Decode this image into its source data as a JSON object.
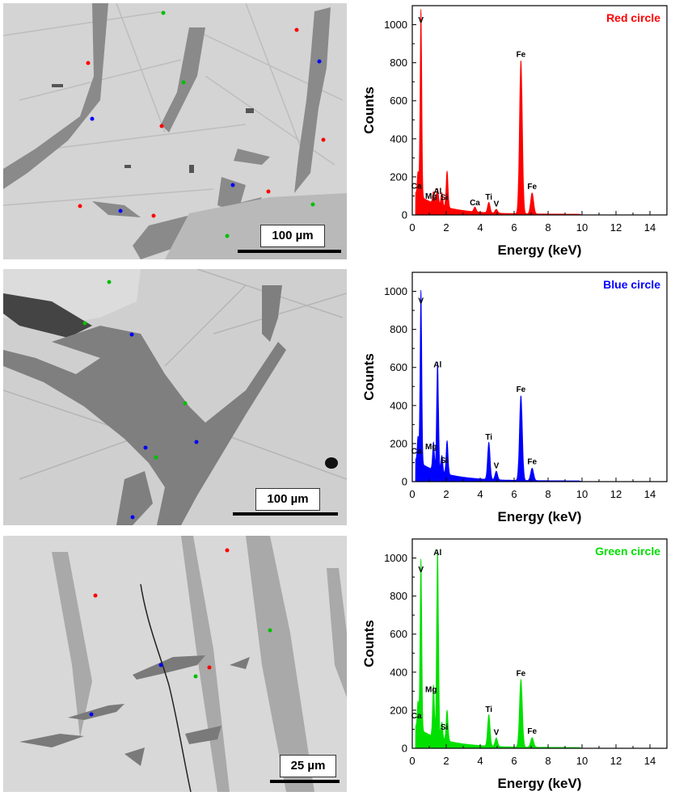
{
  "micrographs": [
    {
      "scale_label": "100 µm"
    },
    {
      "scale_label": "100 µm"
    },
    {
      "scale_label": "25 µm"
    }
  ],
  "chart_data": [
    {
      "type": "line",
      "title": "Red circle",
      "color": "#ff0000",
      "xlabel": "Energy (keV)",
      "ylabel": "Counts",
      "xlim": [
        0,
        15
      ],
      "ylim": [
        0,
        1100
      ],
      "xticks": [
        0,
        2,
        4,
        6,
        8,
        10,
        12,
        14
      ],
      "yticks": [
        0,
        200,
        400,
        600,
        800,
        1000
      ],
      "peaks": [
        {
          "label": "Ca",
          "x": 0.34,
          "y": 120
        },
        {
          "label": "V",
          "x": 0.51,
          "y": 985
        },
        {
          "label": "Mg",
          "x": 1.25,
          "y": 60
        },
        {
          "label": "Al",
          "x": 1.49,
          "y": 85
        },
        {
          "label": "Si",
          "x": 1.74,
          "y": 70
        },
        {
          "label": "Ca",
          "x": 3.69,
          "y": 25
        },
        {
          "label": "Ti",
          "x": 4.51,
          "y": 55
        },
        {
          "label": "V",
          "x": 4.95,
          "y": 20
        },
        {
          "label": "Fe",
          "x": 6.4,
          "y": 805
        },
        {
          "label": "Fe",
          "x": 7.06,
          "y": 110
        }
      ],
      "unlabeled_peaks": [
        {
          "x": 2.05,
          "y": 190
        }
      ]
    },
    {
      "type": "line",
      "title": "Blue circle",
      "color": "#0000ff",
      "xlabel": "Energy (keV)",
      "ylabel": "Counts",
      "xlim": [
        0,
        15
      ],
      "ylim": [
        0,
        1100
      ],
      "xticks": [
        0,
        2,
        4,
        6,
        8,
        10,
        12,
        14
      ],
      "yticks": [
        0,
        200,
        400,
        600,
        800,
        1000
      ],
      "peaks": [
        {
          "label": "Ca",
          "x": 0.34,
          "y": 130
        },
        {
          "label": "V",
          "x": 0.51,
          "y": 910
        },
        {
          "label": "Mg",
          "x": 1.25,
          "y": 145
        },
        {
          "label": "Al",
          "x": 1.49,
          "y": 575
        },
        {
          "label": "Si",
          "x": 1.74,
          "y": 90
        },
        {
          "label": "Ti",
          "x": 4.51,
          "y": 195
        },
        {
          "label": "V",
          "x": 4.95,
          "y": 45
        },
        {
          "label": "Fe",
          "x": 6.4,
          "y": 445
        },
        {
          "label": "Fe",
          "x": 7.06,
          "y": 65
        }
      ],
      "unlabeled_peaks": [
        {
          "x": 2.05,
          "y": 175
        }
      ]
    },
    {
      "type": "line",
      "title": "Green circle",
      "color": "#00e000",
      "xlabel": "Energy (keV)",
      "ylabel": "Counts",
      "xlim": [
        0,
        15
      ],
      "ylim": [
        0,
        1100
      ],
      "xticks": [
        0,
        2,
        4,
        6,
        8,
        10,
        12,
        14
      ],
      "yticks": [
        0,
        200,
        400,
        600,
        800,
        1000
      ],
      "peaks": [
        {
          "label": "Ca",
          "x": 0.34,
          "y": 140
        },
        {
          "label": "V",
          "x": 0.51,
          "y": 900
        },
        {
          "label": "Mg",
          "x": 1.25,
          "y": 270
        },
        {
          "label": "Al",
          "x": 1.49,
          "y": 990
        },
        {
          "label": "Si",
          "x": 1.74,
          "y": 90
        },
        {
          "label": "Ti",
          "x": 4.51,
          "y": 165
        },
        {
          "label": "V",
          "x": 4.95,
          "y": 45
        },
        {
          "label": "Fe",
          "x": 6.4,
          "y": 355
        },
        {
          "label": "Fe",
          "x": 7.06,
          "y": 50
        }
      ],
      "unlabeled_peaks": [
        {
          "x": 2.05,
          "y": 160
        }
      ]
    }
  ]
}
